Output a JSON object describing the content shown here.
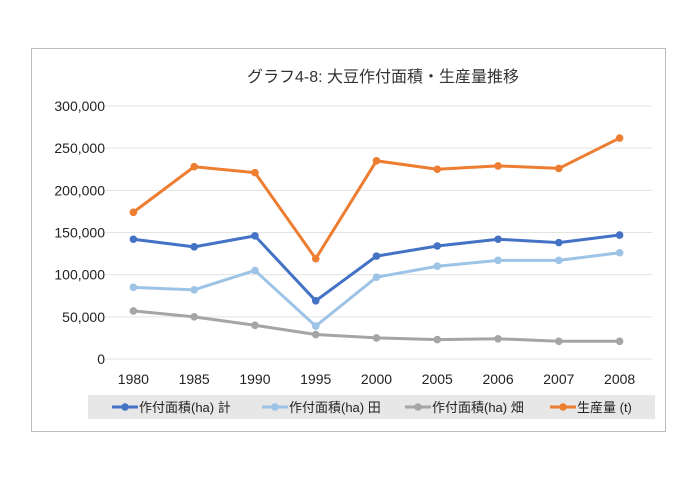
{
  "chart_data": {
    "type": "line",
    "title": "グラフ4-8: 大豆作付面積・生産量推移",
    "xlabel": "",
    "ylabel": "",
    "ylim": [
      0,
      300000
    ],
    "yticks": [
      "0",
      "50,000",
      "100,000",
      "150,000",
      "200,000",
      "250,000",
      "300,000"
    ],
    "ytick_values": [
      0,
      50000,
      100000,
      150000,
      200000,
      250000,
      300000
    ],
    "categories": [
      "1980",
      "1985",
      "1990",
      "1995",
      "2000",
      "2005",
      "2006",
      "2007",
      "2008"
    ],
    "grid": true,
    "legend_position": "bottom",
    "series": [
      {
        "name": "作付面積(ha) 計",
        "color": "#4472c4",
        "values": [
          142000,
          133000,
          146000,
          69000,
          122000,
          134000,
          142000,
          138000,
          147000
        ]
      },
      {
        "name": "作付面積(ha) 田",
        "color": "#9dc3e6",
        "values": [
          85000,
          82000,
          105000,
          39000,
          97000,
          110000,
          117000,
          117000,
          126000
        ]
      },
      {
        "name": "作付面積(ha) 畑",
        "color": "#a5a5a5",
        "values": [
          57000,
          50000,
          40000,
          29000,
          25000,
          23000,
          24000,
          21000,
          21000
        ]
      },
      {
        "name": "生産量 (t)",
        "color": "#ed7d31",
        "values": [
          174000,
          228000,
          221000,
          119000,
          235000,
          225000,
          229000,
          226000,
          262000
        ]
      }
    ]
  }
}
